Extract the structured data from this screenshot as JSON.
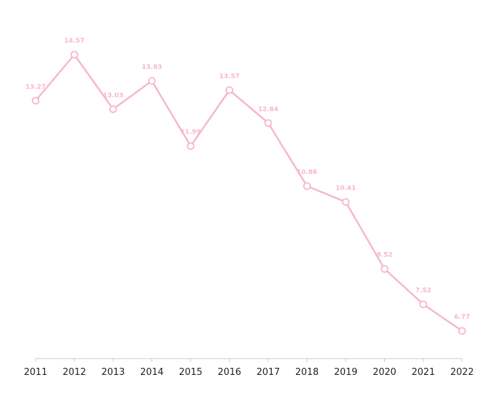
{
  "chart_data": {
    "type": "line",
    "x": [
      "2011",
      "2012",
      "2013",
      "2014",
      "2015",
      "2016",
      "2017",
      "2018",
      "2019",
      "2020",
      "2021",
      "2022"
    ],
    "series": [
      {
        "values": [
          13.27,
          14.57,
          13.03,
          13.83,
          11.99,
          13.57,
          12.64,
          10.86,
          10.41,
          8.52,
          7.52,
          6.77
        ]
      }
    ],
    "data_labels": [
      "13.27",
      "14.57",
      "13.03",
      "13.83",
      "11.99",
      "13.57",
      "12.64",
      "10.86",
      "10.41",
      "8.52",
      "7.52",
      "6.77"
    ],
    "title": "",
    "xlabel": "",
    "ylabel": "",
    "grid": false,
    "y_axis_visible": false,
    "colors": {
      "line": "#f7b6cf",
      "marker_fill": "#ffffff",
      "data_label": "#f7b6cf",
      "axis": "#cccccc",
      "tick_label": "#222222"
    }
  }
}
